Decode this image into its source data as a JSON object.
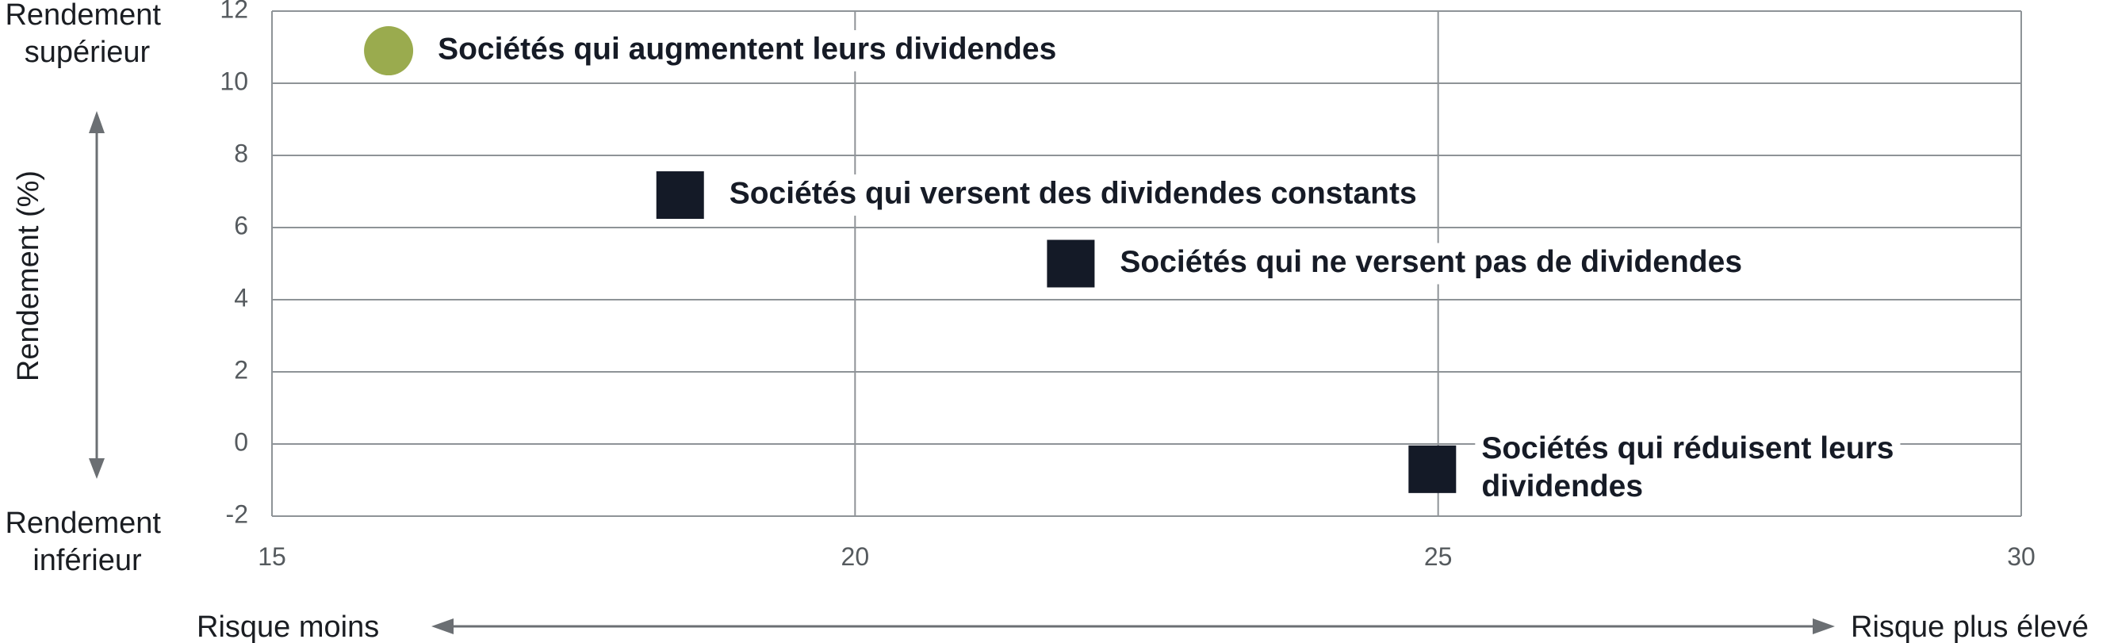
{
  "chart_data": {
    "type": "scatter",
    "ylabel": "Rendement (%)",
    "xlim": [
      15,
      30
    ],
    "ylim": [
      -2,
      12
    ],
    "x_ticks": [
      15,
      20,
      25,
      30
    ],
    "y_ticks": [
      12,
      10,
      8,
      6,
      4,
      2,
      0,
      -2
    ],
    "x_tick_labels": [
      "15",
      "20",
      "25",
      "30"
    ],
    "y_tick_labels": [
      "12",
      "10",
      "8",
      "6",
      "4",
      "2",
      "0",
      "-2"
    ],
    "grid": true,
    "y_arrow_top_label": [
      "Rendement",
      "supérieur"
    ],
    "y_arrow_bottom_label": [
      "Rendement",
      "inférieur"
    ],
    "x_arrow_left_label": "Risque moins",
    "x_arrow_right_label": "Risque plus élevé",
    "points": [
      {
        "x": 16.0,
        "y": 10.9,
        "marker": "circle",
        "color": "#9aab4e",
        "label": [
          "Sociétés qui augmentent leurs dividendes"
        ]
      },
      {
        "x": 18.5,
        "y": 6.9,
        "marker": "square",
        "color": "#141a27",
        "label": [
          "Sociétés qui versent des dividendes constants"
        ]
      },
      {
        "x": 21.85,
        "y": 5.0,
        "marker": "square",
        "color": "#141a27",
        "label": [
          "Sociétés qui ne versent pas de dividendes"
        ]
      },
      {
        "x": 24.95,
        "y": -0.7,
        "marker": "square",
        "color": "#141a27",
        "label": [
          "Sociétés qui réduisent leurs",
          "dividendes"
        ]
      }
    ],
    "colors": {
      "grid": "#8e9397",
      "axis_text": "#555a5e",
      "arrow": "#6b6f73"
    }
  }
}
